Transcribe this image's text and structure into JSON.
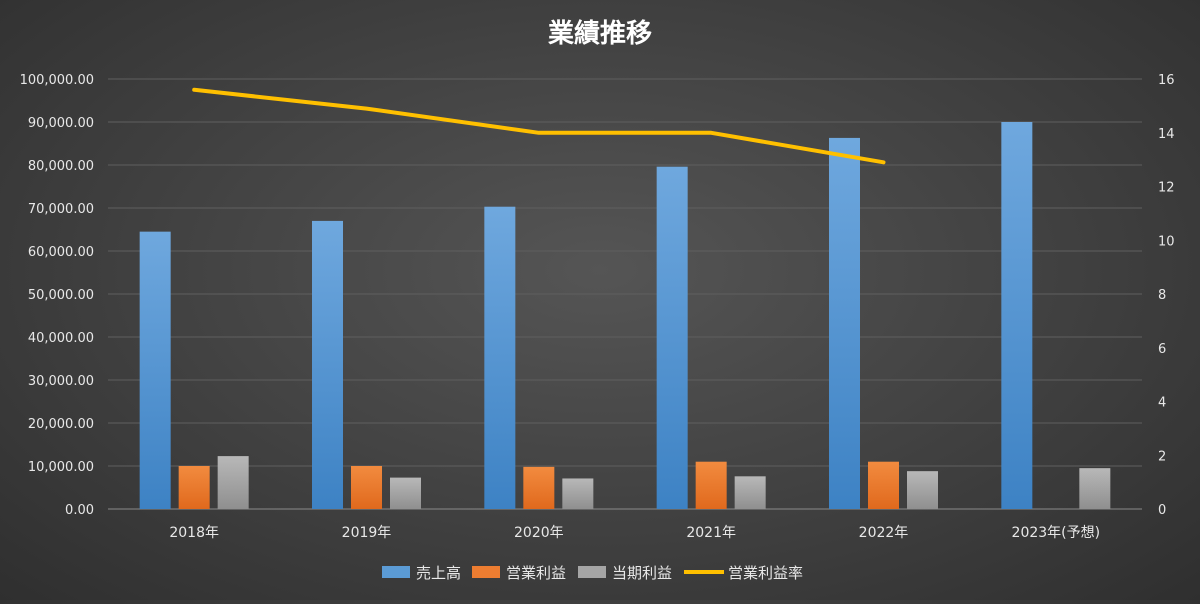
{
  "chart_data": {
    "type": "bar",
    "title": "業績推移",
    "categories": [
      "2018年",
      "2019年",
      "2020年",
      "2021年",
      "2022年",
      "2023年(予想)"
    ],
    "series": [
      {
        "name": "売上高",
        "type": "bar",
        "axis": "left",
        "color": "#5b9bd5",
        "values": [
          64500,
          67000,
          70300,
          79600,
          86300,
          90000
        ]
      },
      {
        "name": "営業利益",
        "type": "bar",
        "axis": "left",
        "color": "#ed7d31",
        "values": [
          10000,
          10000,
          9800,
          11000,
          11000,
          null
        ]
      },
      {
        "name": "当期利益",
        "type": "bar",
        "axis": "left",
        "color": "#a5a5a5",
        "values": [
          12300,
          7300,
          7100,
          7600,
          8800,
          9500
        ]
      },
      {
        "name": "営業利益率",
        "type": "line",
        "axis": "right",
        "color": "#ffc000",
        "values": [
          15.6,
          14.9,
          14.0,
          14.0,
          12.9,
          null
        ]
      }
    ],
    "y_left": {
      "min": 0,
      "max": 100000,
      "step": 10000,
      "tick_labels": [
        "0.00",
        "10,000.00",
        "20,000.00",
        "30,000.00",
        "40,000.00",
        "50,000.00",
        "60,000.00",
        "70,000.00",
        "80,000.00",
        "90,000.00",
        "100,000.00"
      ]
    },
    "y_right": {
      "min": 0,
      "max": 16,
      "step": 2,
      "tick_labels": [
        "0",
        "2",
        "4",
        "6",
        "8",
        "10",
        "12",
        "14",
        "16"
      ]
    },
    "grid": true,
    "legend": "bottom"
  }
}
